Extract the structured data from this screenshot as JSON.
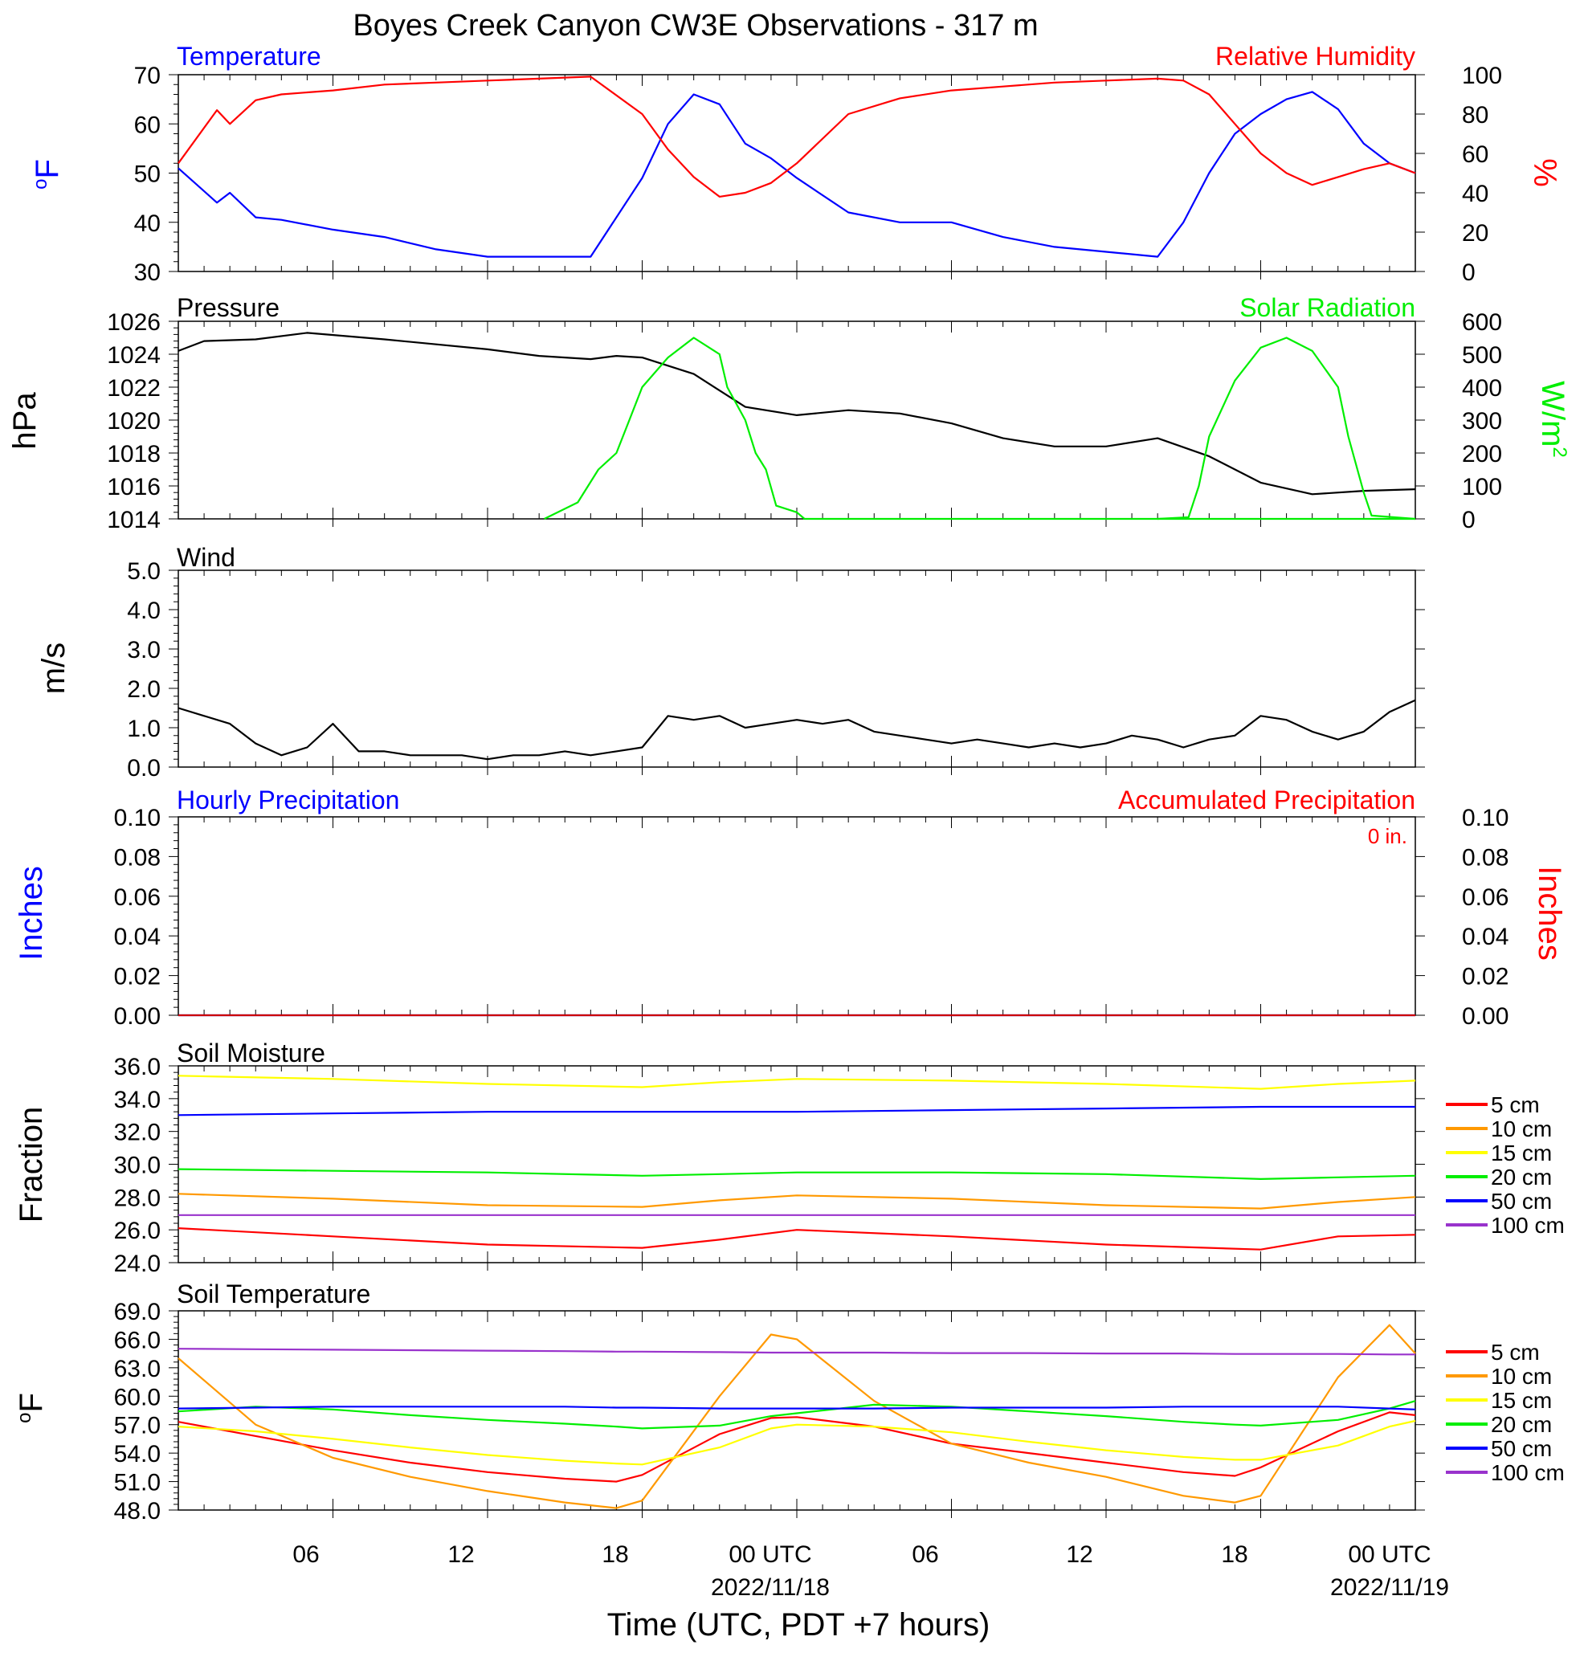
{
  "title": "Boyes Creek Canyon CW3E Observations - 317 m",
  "xlabel": "Time (UTC, PDT +7 hours)",
  "x_ticks": [
    "06",
    "12",
    "18",
    "00 UTC",
    "06",
    "12",
    "18",
    "00 UTC"
  ],
  "x_dates": [
    "2022/11/18",
    "2022/11/19"
  ],
  "colors": {
    "blue": "#0000ff",
    "red": "#ff0000",
    "green": "#00ff00",
    "black": "#000000",
    "orange": "#ff9900",
    "yellow": "#ffff00",
    "purple": "#9933cc"
  },
  "chart_data": [
    {
      "id": "temp_rh",
      "type": "line",
      "title_left": "Temperature",
      "title_right": "Relative Humidity",
      "ylabel_left": "oF",
      "ylabel_right": "%",
      "ylim_left": [
        30,
        70
      ],
      "ylim_right": [
        0,
        100
      ],
      "yticks_left": [
        "30",
        "40",
        "50",
        "60",
        "70"
      ],
      "yticks_right": [
        "0",
        "20",
        "40",
        "60",
        "80",
        "100"
      ],
      "x_hours": [
        0,
        1.5,
        2,
        3,
        4,
        6,
        8,
        10,
        12,
        14,
        16,
        18,
        19,
        20,
        21,
        22,
        23,
        24,
        26,
        28,
        30,
        32,
        34,
        36,
        38,
        39,
        40,
        41,
        42,
        43,
        44,
        45,
        46,
        47,
        48
      ],
      "series": [
        {
          "name": "Temperature",
          "axis": "left",
          "values": [
            51,
            44,
            46,
            41,
            40.5,
            38.5,
            37,
            34.5,
            33,
            33,
            33,
            49,
            60,
            66,
            64,
            56,
            53,
            49,
            42,
            40,
            40,
            37,
            35,
            34,
            33,
            40,
            50,
            58,
            62,
            65,
            66.5,
            63,
            56,
            52,
            50
          ]
        },
        {
          "name": "Relative Humidity",
          "axis": "right",
          "values": [
            55,
            82,
            75,
            87,
            90,
            92,
            95,
            96,
            97,
            98,
            99,
            80,
            62,
            48,
            38,
            40,
            45,
            55,
            80,
            88,
            92,
            94,
            96,
            97,
            98,
            97,
            90,
            75,
            60,
            50,
            44,
            48,
            52,
            55,
            50
          ]
        }
      ]
    },
    {
      "id": "pressure_solar",
      "type": "line",
      "title_left": "Pressure",
      "title_right": "Solar Radiation",
      "ylabel_left": "hPa",
      "ylabel_right": "W/m2",
      "ylim_left": [
        1014,
        1026
      ],
      "ylim_right": [
        0,
        600
      ],
      "yticks_left": [
        "1014",
        "1016",
        "1018",
        "1020",
        "1022",
        "1024",
        "1026"
      ],
      "yticks_right": [
        "0",
        "100",
        "200",
        "300",
        "400",
        "500",
        "600"
      ],
      "series": [
        {
          "name": "Pressure",
          "axis": "left",
          "x_hours": [
            0,
            1,
            3,
            5,
            8,
            12,
            14,
            16,
            17,
            18,
            20,
            22,
            24,
            26,
            28,
            30,
            32,
            34,
            36,
            38,
            40,
            42,
            44,
            46,
            48
          ],
          "values": [
            1024.2,
            1024.8,
            1024.9,
            1025.3,
            1024.9,
            1024.3,
            1023.9,
            1023.7,
            1023.9,
            1023.8,
            1022.8,
            1020.8,
            1020.3,
            1020.6,
            1020.4,
            1019.8,
            1018.9,
            1018.4,
            1018.4,
            1018.9,
            1017.8,
            1016.2,
            1015.5,
            1015.7,
            1015.8
          ]
        },
        {
          "name": "Solar Radiation",
          "axis": "right",
          "x_hours": [
            14.2,
            15.5,
            16.3,
            17,
            17.5,
            18,
            19,
            20,
            21,
            21.3,
            22,
            22.4,
            22.8,
            23.2,
            24,
            24.3,
            48
          ],
          "values": [
            0,
            50,
            150,
            200,
            300,
            400,
            490,
            550,
            500,
            400,
            300,
            200,
            150,
            40,
            20,
            0,
            0
          ]
        },
        {
          "name": "Solar Radiation",
          "axis": "right",
          "x_hours": [
            38,
            39.2,
            39.6,
            40,
            41,
            42,
            43,
            44,
            45,
            45.4,
            46,
            46.3,
            48
          ],
          "values": [
            0,
            5,
            100,
            250,
            420,
            520,
            550,
            510,
            400,
            250,
            80,
            10,
            0
          ]
        }
      ]
    },
    {
      "id": "wind",
      "type": "line",
      "title_left": "Wind",
      "ylabel_left": "m/s",
      "ylim_left": [
        0,
        5
      ],
      "yticks_left": [
        "0.0",
        "1.0",
        "2.0",
        "3.0",
        "4.0",
        "5.0"
      ],
      "x_hours": [
        0,
        1,
        2,
        3,
        4,
        5,
        6,
        7,
        8,
        9,
        10,
        11,
        12,
        13,
        14,
        15,
        16,
        17,
        18,
        19,
        20,
        21,
        22,
        23,
        24,
        25,
        26,
        27,
        28,
        29,
        30,
        31,
        32,
        33,
        34,
        35,
        36,
        37,
        38,
        39,
        40,
        41,
        42,
        43,
        44,
        45,
        46,
        47,
        48
      ],
      "series": [
        {
          "name": "Wind",
          "axis": "left",
          "values": [
            1.5,
            1.3,
            1.1,
            0.6,
            0.3,
            0.5,
            1.1,
            0.4,
            0.4,
            0.3,
            0.3,
            0.3,
            0.2,
            0.3,
            0.3,
            0.4,
            0.3,
            0.4,
            0.5,
            1.3,
            1.2,
            1.3,
            1.0,
            1.1,
            1.2,
            1.1,
            1.2,
            0.9,
            0.8,
            0.7,
            0.6,
            0.7,
            0.6,
            0.5,
            0.6,
            0.5,
            0.6,
            0.8,
            0.7,
            0.5,
            0.7,
            0.8,
            1.3,
            1.2,
            0.9,
            0.7,
            0.9,
            1.4,
            1.7
          ]
        }
      ]
    },
    {
      "id": "precip",
      "type": "line",
      "title_left": "Hourly Precipitation",
      "title_right": "Accumulated Precipitation",
      "annotation": "0 in.",
      "ylabel_left": "Inches",
      "ylabel_right": "Inches",
      "ylim_left": [
        0,
        0.1
      ],
      "ylim_right": [
        0,
        0.1
      ],
      "yticks_left": [
        "0.00",
        "0.02",
        "0.04",
        "0.06",
        "0.08",
        "0.10"
      ],
      "yticks_right": [
        "0.00",
        "0.02",
        "0.04",
        "0.06",
        "0.08",
        "0.10"
      ],
      "x_hours": [
        0,
        48
      ],
      "series": [
        {
          "name": "Hourly Precipitation",
          "axis": "left",
          "values": [
            0,
            0
          ]
        },
        {
          "name": "Accumulated Precipitation",
          "axis": "right",
          "values": [
            0,
            0
          ]
        }
      ]
    },
    {
      "id": "soil_moisture",
      "type": "line",
      "title_left": "Soil Moisture",
      "ylabel_left": "Fraction",
      "ylim_left": [
        24,
        36
      ],
      "yticks_left": [
        "24.0",
        "26.0",
        "28.0",
        "30.0",
        "32.0",
        "34.0",
        "36.0"
      ],
      "x_hours": [
        0,
        6,
        12,
        18,
        21,
        24,
        30,
        36,
        42,
        45,
        48
      ],
      "series": [
        {
          "name": "5 cm",
          "values": [
            26.1,
            25.6,
            25.1,
            24.9,
            25.4,
            26.0,
            25.6,
            25.1,
            24.8,
            25.6,
            25.7
          ]
        },
        {
          "name": "10 cm",
          "values": [
            28.2,
            27.9,
            27.5,
            27.4,
            27.8,
            28.1,
            27.9,
            27.5,
            27.3,
            27.7,
            28.0
          ]
        },
        {
          "name": "15 cm",
          "values": [
            35.4,
            35.2,
            34.9,
            34.7,
            35.0,
            35.2,
            35.1,
            34.9,
            34.6,
            34.9,
            35.1
          ]
        },
        {
          "name": "20 cm",
          "values": [
            29.7,
            29.6,
            29.5,
            29.3,
            29.4,
            29.5,
            29.5,
            29.4,
            29.1,
            29.2,
            29.3
          ]
        },
        {
          "name": "50 cm",
          "values": [
            33.0,
            33.1,
            33.2,
            33.2,
            33.2,
            33.2,
            33.3,
            33.4,
            33.5,
            33.5,
            33.5
          ]
        },
        {
          "name": "100 cm",
          "values": [
            26.9,
            26.9,
            26.9,
            26.9,
            26.9,
            26.9,
            26.9,
            26.9,
            26.9,
            26.9,
            26.9
          ]
        }
      ]
    },
    {
      "id": "soil_temp",
      "type": "line",
      "title_left": "Soil Temperature",
      "ylabel_left": "oF",
      "ylim_left": [
        48,
        69
      ],
      "yticks_left": [
        "48.0",
        "51.0",
        "54.0",
        "57.0",
        "60.0",
        "63.0",
        "66.0",
        "69.0"
      ],
      "x_hours": [
        0,
        3,
        6,
        9,
        12,
        15,
        17,
        18,
        21,
        23,
        24,
        27,
        30,
        33,
        36,
        39,
        41,
        42,
        45,
        47,
        48
      ],
      "series": [
        {
          "name": "5 cm",
          "values": [
            57.3,
            55.8,
            54.3,
            53.0,
            52.0,
            51.3,
            51.0,
            51.7,
            56.0,
            57.7,
            57.8,
            56.8,
            55.0,
            54.0,
            53.0,
            52.0,
            51.6,
            52.5,
            56.3,
            58.3,
            58.0
          ]
        },
        {
          "name": "10 cm",
          "values": [
            64.0,
            57.0,
            53.5,
            51.5,
            50.0,
            48.8,
            48.2,
            49.0,
            60.0,
            66.5,
            66.0,
            59.5,
            55.0,
            53.0,
            51.5,
            49.5,
            48.8,
            49.5,
            62.0,
            67.5,
            64.5
          ]
        },
        {
          "name": "15 cm",
          "values": [
            56.8,
            56.3,
            55.5,
            54.6,
            53.8,
            53.2,
            52.9,
            52.8,
            54.6,
            56.6,
            57.0,
            56.8,
            56.2,
            55.2,
            54.3,
            53.6,
            53.3,
            53.3,
            54.8,
            56.8,
            57.4
          ]
        },
        {
          "name": "20 cm",
          "values": [
            58.4,
            58.9,
            58.6,
            58.0,
            57.5,
            57.1,
            56.8,
            56.6,
            56.9,
            57.9,
            58.2,
            59.1,
            58.9,
            58.4,
            57.9,
            57.3,
            57.0,
            56.9,
            57.5,
            58.7,
            59.5
          ]
        },
        {
          "name": "50 cm",
          "values": [
            58.7,
            58.8,
            58.9,
            58.9,
            58.9,
            58.9,
            58.8,
            58.8,
            58.7,
            58.7,
            58.7,
            58.7,
            58.8,
            58.8,
            58.8,
            58.9,
            58.9,
            58.9,
            58.9,
            58.7,
            58.6
          ]
        },
        {
          "name": "100 cm",
          "values": [
            65.0,
            64.95,
            64.9,
            64.85,
            64.8,
            64.75,
            64.7,
            64.7,
            64.65,
            64.6,
            64.6,
            64.6,
            64.55,
            64.55,
            64.5,
            64.5,
            64.45,
            64.45,
            64.45,
            64.4,
            64.4
          ]
        }
      ]
    }
  ],
  "legend_labels": [
    "5 cm",
    "10 cm",
    "15 cm",
    "20 cm",
    "50 cm",
    "100 cm"
  ]
}
